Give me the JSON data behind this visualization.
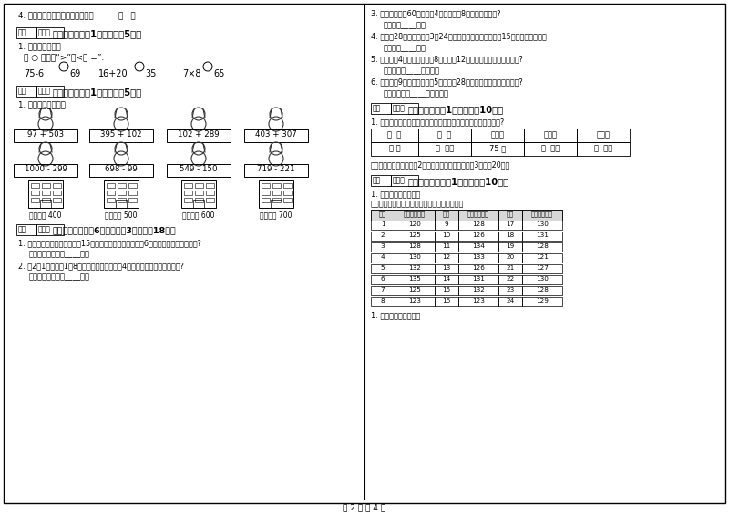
{
  "bg_color": "#ffffff",
  "border_color": "#000000",
  "text_color": "#000000",
  "light_gray": "#cccccc",
  "page_footer": "第 2 页 共 4 页",
  "left_col": {
    "item4": "4. 量小蛂蚁的身才用毫米作单位。          （   ）",
    "sec6_header": "六、比一比（共1大题，共芈5分）",
    "sec6_q1": "1. 我会判断大小。",
    "sec6_q1b": "在 ○ 里填上“>”、<或 =”.",
    "sec7_header": "七、连一连（共1大题，共芈5分）",
    "sec7_q1": "1. 估一估，连一连。",
    "sec7_top_exprs": [
      "97 + 503",
      "395 + 102",
      "102 + 289",
      "403 + 307"
    ],
    "sec7_bot_exprs": [
      "1000 - 299",
      "698 - 99",
      "549 - 150",
      "719 - 221"
    ],
    "sec7_labels": [
      "得数接近 400",
      "得数大约 500",
      "得数接近 600",
      "得数大约 700"
    ],
    "sec8_header": "八、解决问题（共6小题，每颙3分，共舘18分）",
    "sec8_q1": "1. 小红看故事书，第一天看了15页，第二天看的比第一天少6页，两天一共看了多少页?",
    "sec8_a1": "答：两天一共看了____页。",
    "sec8_q2": "2. 有2符1水，每符1有8瓶，把这些水平均分绔4个同学，每个同学能分几瓶?",
    "sec8_a2": "答：每个同学能分____瓶。"
  },
  "right_col": {
    "sec8_q3": "3. 商店有自行轣60辆，卖了4天，每天塨8辆，还剩多少辆?",
    "sec8_a3": "答：还剩____辆。",
    "sec8_q4": "4. 小红有28个气球，小舦3有24个气球，送给幼儿园小朋友15个，还剩多少个？",
    "sec8_a4": "答：还剩____个。",
    "sec8_q5": "5. 果园里有4行苹果树，每行8棵，还有12棵梨树，一共有多少棵果树?",
    "sec8_a5": "答：一共有____棵果树。",
    "sec8_q6": "6. 商店里有9袋乒乓球，每袋5个，卖了28个，现在还有多少个乒乓球?",
    "sec8_a6": "答：现在还有____个乒乓球。",
    "sec10_header": "十、综合题（共1大题，共舘10分）",
    "sec10_q1": "1. 下表是四、五、六年级同学借书的统计你能把下表填写完整吗?",
    "sec10_table_headers": [
      "年  级",
      "合  计",
      "四年级",
      "五年级",
      "六年级"
    ],
    "sec10_table_row": [
      "本 数",
      "（  ）本",
      "75 本",
      "（  ）本",
      "（  ）本"
    ],
    "sec10_note": "五年级借的书是四年级的2倍，六年级借书比四年级的3倍还多20本。",
    "sec11_header": "十一、附加题（共1大题，共舘10分）",
    "sec11_q1": "1. 观察分析，我统计。",
    "sec11_note": "下面是希望小学二年级一班女生身高统计情况。",
    "sec11_table": {
      "headers": [
        "学号",
        "身高（厘米）",
        "学号",
        "身高（厘米）",
        "学号",
        "身高（厘米）"
      ],
      "rows": [
        [
          1,
          120,
          9,
          128,
          17,
          130
        ],
        [
          2,
          125,
          10,
          126,
          18,
          131
        ],
        [
          3,
          128,
          11,
          134,
          19,
          128
        ],
        [
          4,
          130,
          12,
          133,
          20,
          121
        ],
        [
          5,
          132,
          13,
          126,
          21,
          127
        ],
        [
          6,
          135,
          14,
          131,
          22,
          130
        ],
        [
          7,
          125,
          15,
          132,
          23,
          128
        ],
        [
          8,
          123,
          16,
          123,
          24,
          129
        ]
      ]
    },
    "sec11_q2": "1. 完成下面的统计表。"
  }
}
